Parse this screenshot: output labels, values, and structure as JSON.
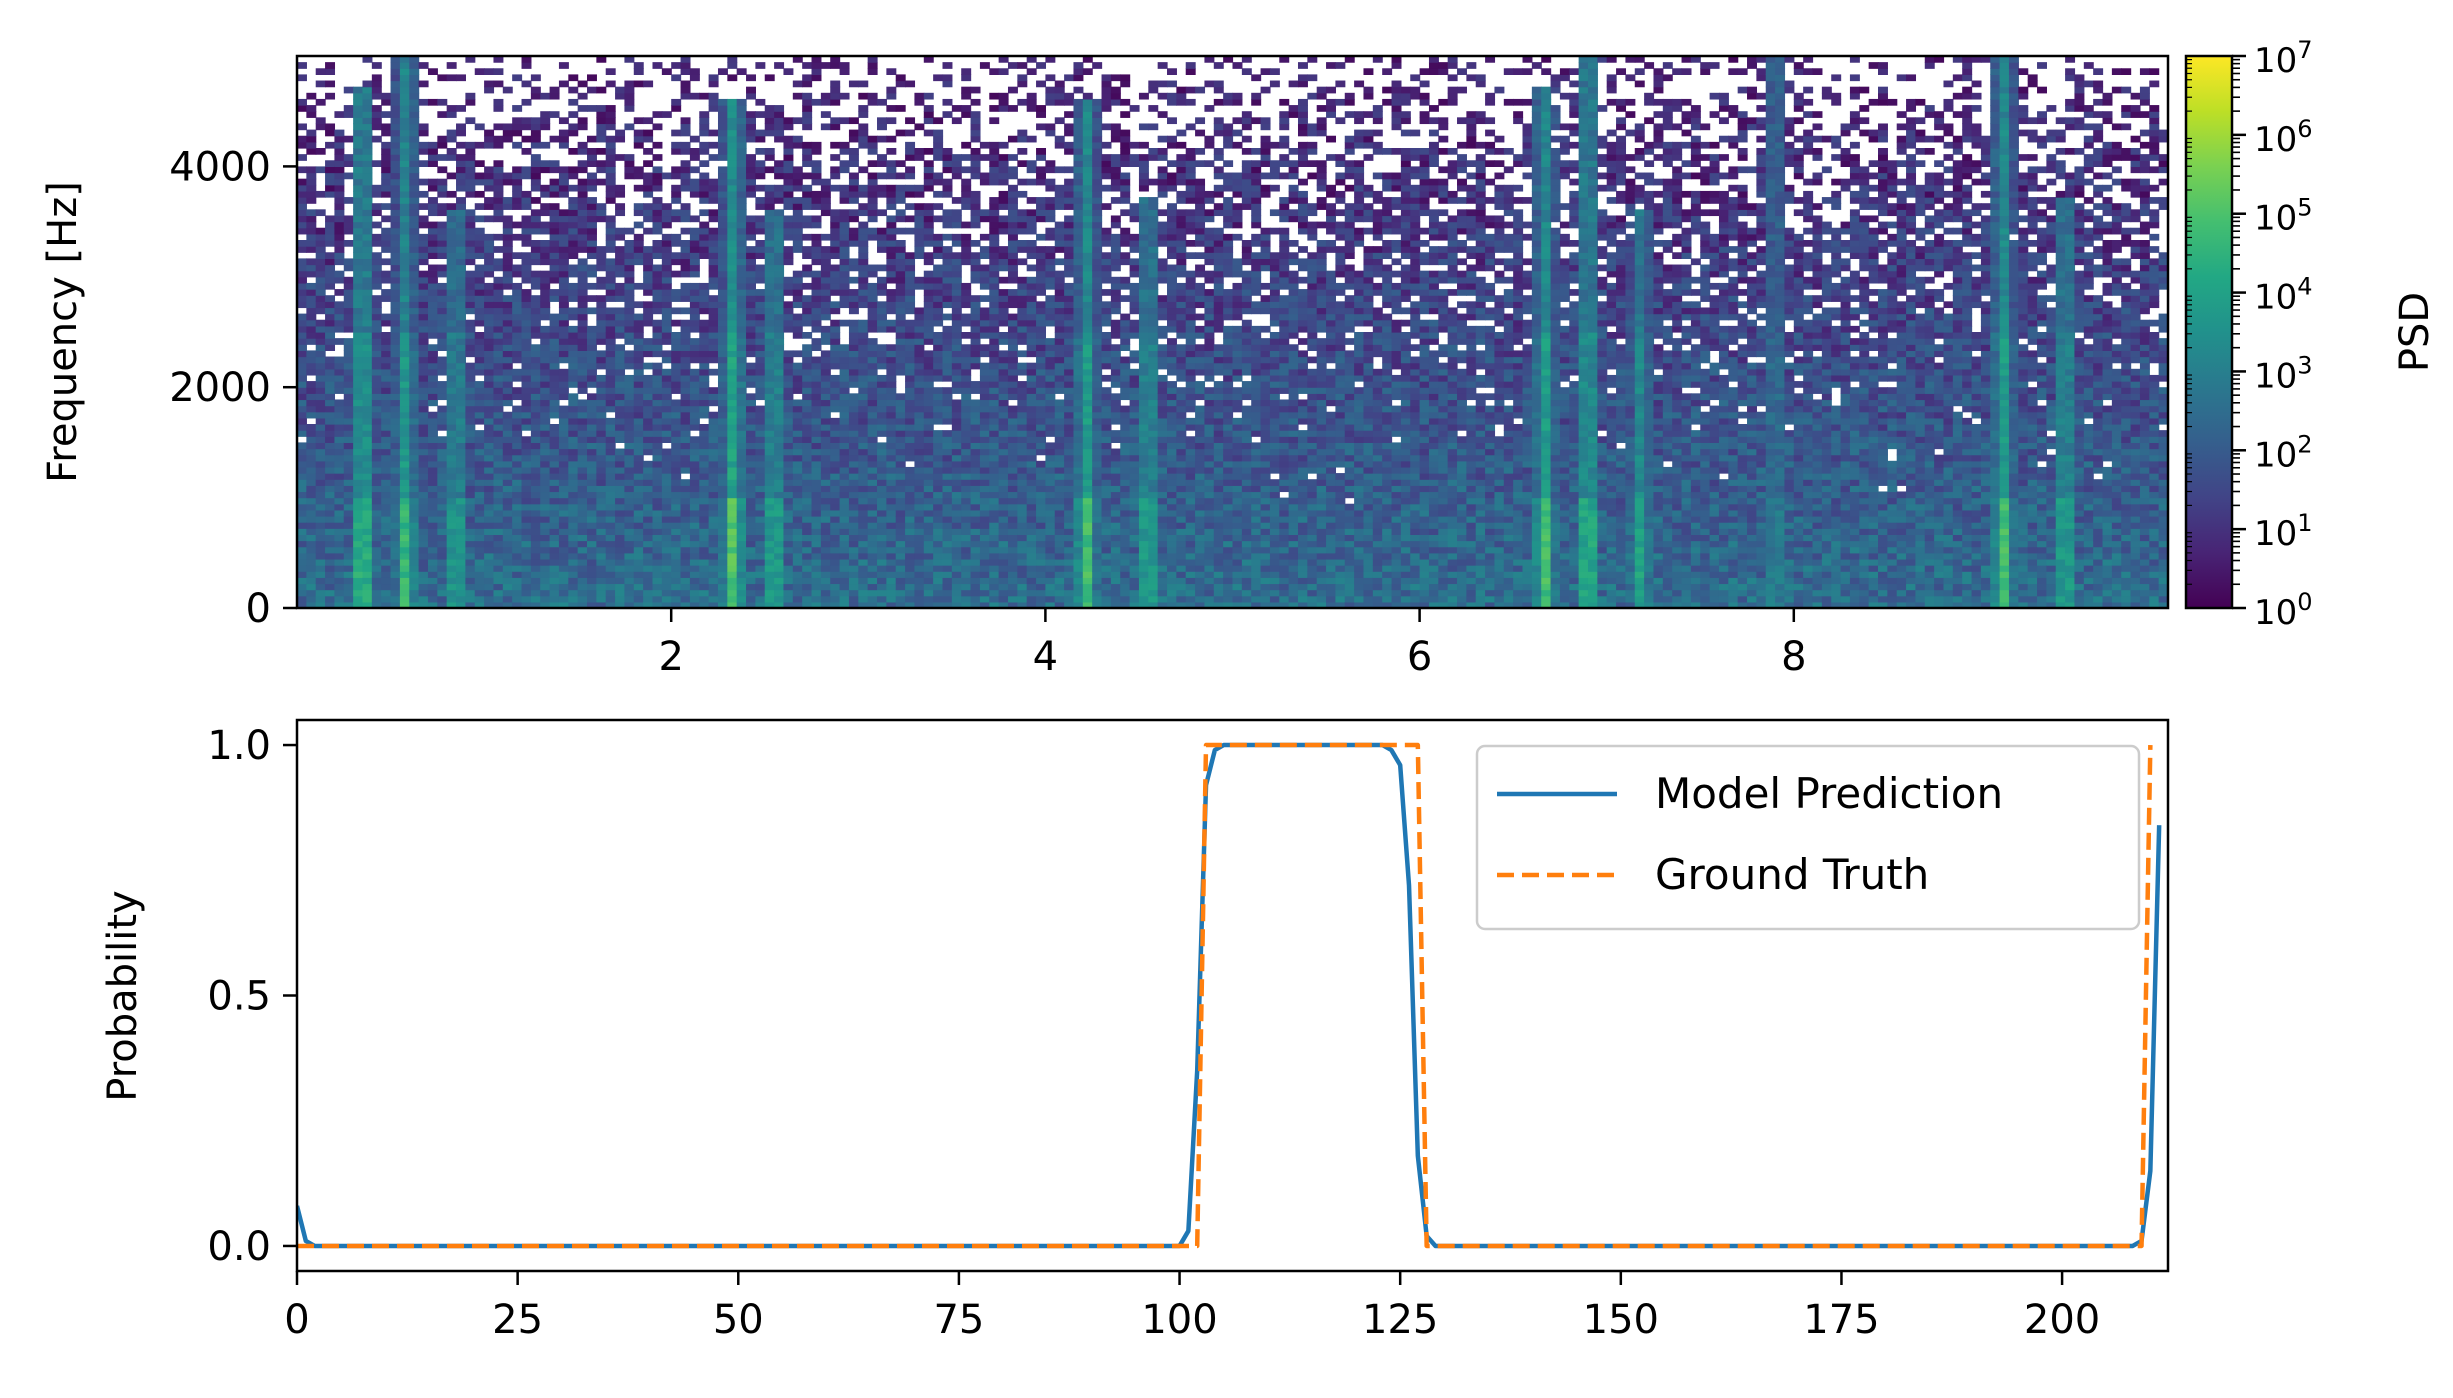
{
  "chart_data": [
    {
      "type": "heatmap",
      "title": "",
      "xlabel": "",
      "ylabel": "Frequency [Hz]",
      "xlim": [
        0,
        10
      ],
      "ylim": [
        0,
        5000
      ],
      "xticks": [
        2,
        4,
        6,
        8
      ],
      "xtick_labels": [
        "2",
        "4",
        "6",
        "8"
      ],
      "yticks": [
        0,
        2000,
        4000
      ],
      "ytick_labels": [
        "0",
        "2000",
        "4000"
      ],
      "colormap": "viridis",
      "color_scale": "log",
      "colorbar": {
        "label": "PSD",
        "range": [
          1,
          10000000
        ],
        "ticks": [
          {
            "base": "10",
            "exp": "0"
          },
          {
            "base": "10",
            "exp": "1"
          },
          {
            "base": "10",
            "exp": "2"
          },
          {
            "base": "10",
            "exp": "3"
          },
          {
            "base": "10",
            "exp": "4"
          },
          {
            "base": "10",
            "exp": "5"
          },
          {
            "base": "10",
            "exp": "6"
          },
          {
            "base": "10",
            "exp": "7"
          }
        ]
      },
      "bursts": [
        {
          "t": 0.35,
          "f_max": 4700,
          "strength": 0.85
        },
        {
          "t": 0.58,
          "f_max": 5000,
          "strength": 0.8
        },
        {
          "t": 0.85,
          "f_max": 3600,
          "strength": 0.65
        },
        {
          "t": 2.33,
          "f_max": 4600,
          "strength": 0.9
        },
        {
          "t": 2.55,
          "f_max": 3600,
          "strength": 0.7
        },
        {
          "t": 4.22,
          "f_max": 4600,
          "strength": 0.85
        },
        {
          "t": 4.55,
          "f_max": 3700,
          "strength": 0.7
        },
        {
          "t": 6.67,
          "f_max": 4700,
          "strength": 0.85
        },
        {
          "t": 6.9,
          "f_max": 5000,
          "strength": 0.8
        },
        {
          "t": 7.18,
          "f_max": 3600,
          "strength": 0.65
        },
        {
          "t": 7.9,
          "f_max": 5000,
          "strength": 0.45
        },
        {
          "t": 9.12,
          "f_max": 5000,
          "strength": 0.85
        },
        {
          "t": 9.45,
          "f_max": 3700,
          "strength": 0.7
        }
      ]
    },
    {
      "type": "line",
      "title": "",
      "xlabel": "",
      "ylabel": "Probability",
      "xlim": [
        0,
        212
      ],
      "ylim": [
        -0.05,
        1.05
      ],
      "xticks": [
        0,
        25,
        50,
        75,
        100,
        125,
        150,
        175,
        200
      ],
      "xtick_labels": [
        "0",
        "25",
        "50",
        "75",
        "100",
        "125",
        "150",
        "175",
        "200"
      ],
      "yticks": [
        0,
        0.5,
        1
      ],
      "ytick_labels": [
        "0.0",
        "0.5",
        "1.0"
      ],
      "legend_position": "top-right",
      "series": [
        {
          "name": "Model Prediction",
          "color": "#1f77b4",
          "style": "solid",
          "x": [
            0,
            1,
            2,
            3,
            99,
            100,
            101,
            102,
            103,
            104,
            105,
            123,
            124,
            125,
            126,
            127,
            128,
            129,
            130,
            208,
            209,
            210,
            211
          ],
          "y": [
            0.08,
            0.01,
            0.0,
            0.0,
            0.0,
            0.0,
            0.03,
            0.35,
            0.92,
            0.99,
            1.0,
            1.0,
            0.99,
            0.96,
            0.72,
            0.18,
            0.02,
            0.0,
            0.0,
            0.0,
            0.01,
            0.15,
            0.84
          ]
        },
        {
          "name": "Ground Truth",
          "color": "#ff7f0e",
          "style": "dashed",
          "x": [
            0,
            102,
            103,
            127,
            128,
            209,
            210
          ],
          "y": [
            0,
            0,
            1,
            1,
            0,
            0,
            1
          ]
        }
      ]
    }
  ]
}
